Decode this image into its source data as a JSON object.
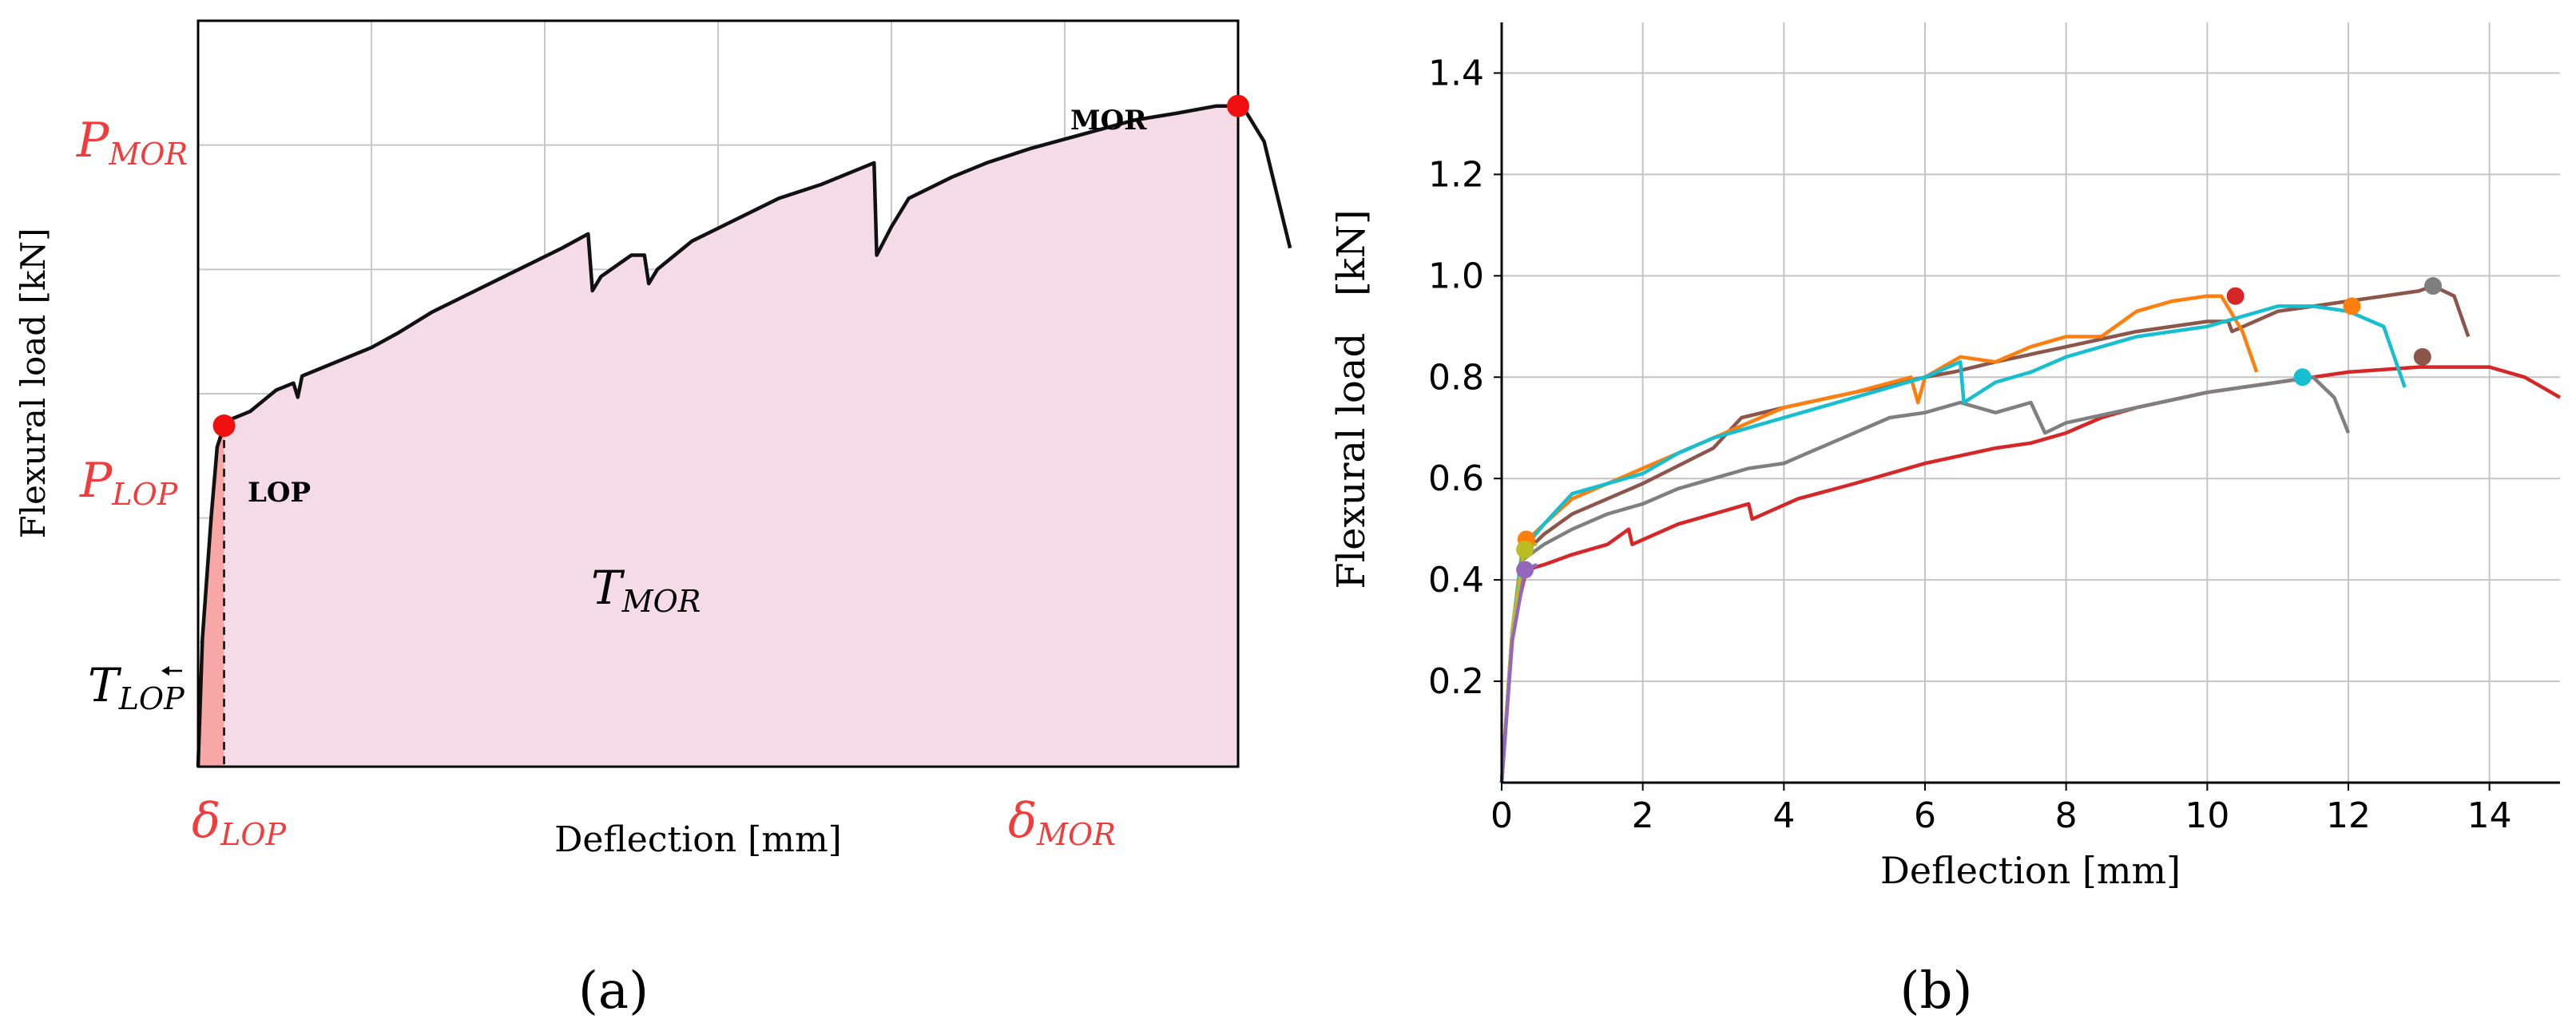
{
  "chart_data": [
    {
      "type": "area",
      "panel_label": "(a)",
      "xlabel": "Deflection [mm]",
      "ylabel": "Flexural load [kN]",
      "annotations": {
        "p_mor": "P",
        "p_mor_sub": "MOR",
        "p_lop": "P",
        "p_lop_sub": "LOP",
        "delta_lop": "δ",
        "delta_lop_sub": "LOP",
        "delta_mor": "δ",
        "delta_mor_sub": "MOR",
        "t_mor": "T",
        "t_mor_sub": "MOR",
        "t_lop": "T",
        "t_lop_sub": "LOP",
        "lop_label": "LOP",
        "mor_label": "MOR"
      },
      "xlim": [
        0,
        12
      ],
      "ylim": [
        0,
        1.05
      ],
      "curve": [
        [
          0.0,
          0.0
        ],
        [
          0.05,
          0.18
        ],
        [
          0.15,
          0.35
        ],
        [
          0.22,
          0.45
        ],
        [
          0.3,
          0.48
        ],
        [
          0.4,
          0.49
        ],
        [
          0.6,
          0.5
        ],
        [
          0.9,
          0.53
        ],
        [
          1.1,
          0.54
        ],
        [
          1.15,
          0.52
        ],
        [
          1.2,
          0.55
        ],
        [
          1.6,
          0.57
        ],
        [
          2.0,
          0.59
        ],
        [
          2.3,
          0.61
        ],
        [
          2.7,
          0.64
        ],
        [
          3.2,
          0.67
        ],
        [
          3.7,
          0.7
        ],
        [
          4.2,
          0.73
        ],
        [
          4.5,
          0.75
        ],
        [
          4.55,
          0.67
        ],
        [
          4.65,
          0.69
        ],
        [
          5.0,
          0.72
        ],
        [
          5.15,
          0.72
        ],
        [
          5.2,
          0.68
        ],
        [
          5.3,
          0.7
        ],
        [
          5.7,
          0.74
        ],
        [
          6.2,
          0.77
        ],
        [
          6.7,
          0.8
        ],
        [
          7.2,
          0.82
        ],
        [
          7.6,
          0.84
        ],
        [
          7.8,
          0.85
        ],
        [
          7.83,
          0.72
        ],
        [
          8.0,
          0.76
        ],
        [
          8.2,
          0.8
        ],
        [
          8.7,
          0.83
        ],
        [
          9.1,
          0.85
        ],
        [
          9.6,
          0.87
        ],
        [
          10.2,
          0.89
        ],
        [
          10.8,
          0.91
        ],
        [
          11.3,
          0.92
        ],
        [
          11.75,
          0.93
        ],
        [
          12.0,
          0.93
        ],
        [
          12.1,
          0.92
        ],
        [
          12.3,
          0.88
        ],
        [
          12.4,
          0.83
        ],
        [
          12.6,
          0.73
        ]
      ],
      "lop_point": [
        0.3,
        0.48
      ],
      "mor_point": [
        12.0,
        0.93
      ]
    },
    {
      "type": "line",
      "panel_label": "(b)",
      "xlabel": "Deflection [mm]",
      "ylabel": "Flexural load   [kN]",
      "xlim": [
        0,
        15
      ],
      "ylim": [
        0,
        1.5
      ],
      "xticks": [
        "0",
        "2",
        "4",
        "6",
        "8",
        "10",
        "12",
        "14"
      ],
      "yticks": [
        "0.2",
        "0.4",
        "0.6",
        "0.8",
        "1.0",
        "1.2",
        "1.4"
      ],
      "series": [
        {
          "name": "red",
          "color": "#d62728",
          "points": [
            [
              0,
              0
            ],
            [
              0.15,
              0.3
            ],
            [
              0.35,
              0.42
            ],
            [
              0.6,
              0.43
            ],
            [
              1.0,
              0.45
            ],
            [
              1.5,
              0.47
            ],
            [
              1.8,
              0.5
            ],
            [
              1.85,
              0.47
            ],
            [
              2.5,
              0.51
            ],
            [
              3.0,
              0.53
            ],
            [
              3.5,
              0.55
            ],
            [
              3.55,
              0.52
            ],
            [
              4.2,
              0.56
            ],
            [
              5.0,
              0.59
            ],
            [
              6.0,
              0.63
            ],
            [
              7.0,
              0.66
            ],
            [
              7.5,
              0.67
            ],
            [
              8.0,
              0.69
            ],
            [
              8.5,
              0.72
            ],
            [
              9.0,
              0.74
            ],
            [
              10.0,
              0.77
            ],
            [
              11.0,
              0.79
            ],
            [
              12.0,
              0.81
            ],
            [
              13.0,
              0.82
            ],
            [
              13.5,
              0.82
            ],
            [
              14.0,
              0.82
            ],
            [
              14.5,
              0.8
            ],
            [
              15.0,
              0.76
            ]
          ]
        },
        {
          "name": "gray",
          "color": "#7f7f7f",
          "points": [
            [
              0,
              0
            ],
            [
              0.15,
              0.3
            ],
            [
              0.3,
              0.44
            ],
            [
              0.6,
              0.47
            ],
            [
              1.0,
              0.5
            ],
            [
              1.5,
              0.53
            ],
            [
              2.0,
              0.55
            ],
            [
              2.5,
              0.58
            ],
            [
              3.0,
              0.6
            ],
            [
              3.5,
              0.62
            ],
            [
              4.0,
              0.63
            ],
            [
              4.5,
              0.66
            ],
            [
              5.0,
              0.69
            ],
            [
              5.5,
              0.72
            ],
            [
              6.0,
              0.73
            ],
            [
              6.5,
              0.75
            ],
            [
              7.0,
              0.73
            ],
            [
              7.5,
              0.75
            ],
            [
              7.7,
              0.69
            ],
            [
              8.0,
              0.71
            ],
            [
              9.0,
              0.74
            ],
            [
              10.0,
              0.77
            ],
            [
              11.0,
              0.79
            ],
            [
              11.5,
              0.8
            ],
            [
              11.8,
              0.76
            ],
            [
              12.0,
              0.69
            ]
          ]
        },
        {
          "name": "brown",
          "color": "#8c564b",
          "points": [
            [
              0,
              0
            ],
            [
              0.15,
              0.3
            ],
            [
              0.3,
              0.45
            ],
            [
              0.6,
              0.49
            ],
            [
              1.0,
              0.53
            ],
            [
              2.0,
              0.59
            ],
            [
              3.0,
              0.66
            ],
            [
              3.4,
              0.72
            ],
            [
              4.0,
              0.74
            ],
            [
              5.0,
              0.77
            ],
            [
              6.0,
              0.8
            ],
            [
              6.4,
              0.81
            ],
            [
              7.0,
              0.83
            ],
            [
              8.0,
              0.86
            ],
            [
              9.0,
              0.89
            ],
            [
              10.0,
              0.91
            ],
            [
              10.3,
              0.91
            ],
            [
              10.35,
              0.89
            ],
            [
              11.0,
              0.93
            ],
            [
              12.0,
              0.95
            ],
            [
              13.0,
              0.97
            ],
            [
              13.2,
              0.98
            ],
            [
              13.5,
              0.96
            ],
            [
              13.7,
              0.88
            ]
          ]
        },
        {
          "name": "orange",
          "color": "#ff7f0e",
          "points": [
            [
              0,
              0
            ],
            [
              0.15,
              0.3
            ],
            [
              0.3,
              0.47
            ],
            [
              0.6,
              0.51
            ],
            [
              1.0,
              0.56
            ],
            [
              2.0,
              0.62
            ],
            [
              3.0,
              0.68
            ],
            [
              4.0,
              0.74
            ],
            [
              5.0,
              0.77
            ],
            [
              5.8,
              0.8
            ],
            [
              5.9,
              0.75
            ],
            [
              6.0,
              0.8
            ],
            [
              6.5,
              0.84
            ],
            [
              7.0,
              0.83
            ],
            [
              7.5,
              0.86
            ],
            [
              8.0,
              0.88
            ],
            [
              8.5,
              0.88
            ],
            [
              9.0,
              0.93
            ],
            [
              9.5,
              0.95
            ],
            [
              10.0,
              0.96
            ],
            [
              10.2,
              0.96
            ],
            [
              10.5,
              0.89
            ],
            [
              10.7,
              0.81
            ]
          ]
        },
        {
          "name": "cyan",
          "color": "#17becf",
          "points": [
            [
              0,
              0
            ],
            [
              0.15,
              0.3
            ],
            [
              0.3,
              0.46
            ],
            [
              0.6,
              0.51
            ],
            [
              1.0,
              0.57
            ],
            [
              2.0,
              0.61
            ],
            [
              2.5,
              0.65
            ],
            [
              3.0,
              0.68
            ],
            [
              4.0,
              0.72
            ],
            [
              5.0,
              0.76
            ],
            [
              6.0,
              0.8
            ],
            [
              6.5,
              0.83
            ],
            [
              6.55,
              0.75
            ],
            [
              7.0,
              0.79
            ],
            [
              7.5,
              0.81
            ],
            [
              8.0,
              0.84
            ],
            [
              9.0,
              0.88
            ],
            [
              10.0,
              0.9
            ],
            [
              10.5,
              0.92
            ],
            [
              11.0,
              0.94
            ],
            [
              11.5,
              0.94
            ],
            [
              12.0,
              0.93
            ],
            [
              12.5,
              0.9
            ],
            [
              12.8,
              0.78
            ]
          ]
        },
        {
          "name": "olive",
          "color": "#bcbd22",
          "points": [
            [
              0,
              0
            ],
            [
              0.15,
              0.3
            ],
            [
              0.33,
              0.47
            ],
            [
              0.5,
              0.47
            ]
          ]
        },
        {
          "name": "purple",
          "color": "#9467bd",
          "points": [
            [
              0,
              0
            ],
            [
              0.15,
              0.28
            ],
            [
              0.33,
              0.42
            ],
            [
              0.5,
              0.43
            ]
          ]
        }
      ],
      "markers": [
        {
          "color": "#d62728",
          "x": 10.4,
          "y": 0.96
        },
        {
          "color": "#7f7f7f",
          "x": 13.2,
          "y": 0.98
        },
        {
          "color": "#ff7f0e",
          "x": 12.05,
          "y": 0.94
        },
        {
          "color": "#8c564b",
          "x": 13.05,
          "y": 0.84
        },
        {
          "color": "#17becf",
          "x": 11.35,
          "y": 0.8
        },
        {
          "color": "#ff7f0e",
          "x": 0.35,
          "y": 0.48
        },
        {
          "color": "#bcbd22",
          "x": 0.33,
          "y": 0.46
        },
        {
          "color": "#9467bd",
          "x": 0.33,
          "y": 0.42
        }
      ]
    }
  ]
}
